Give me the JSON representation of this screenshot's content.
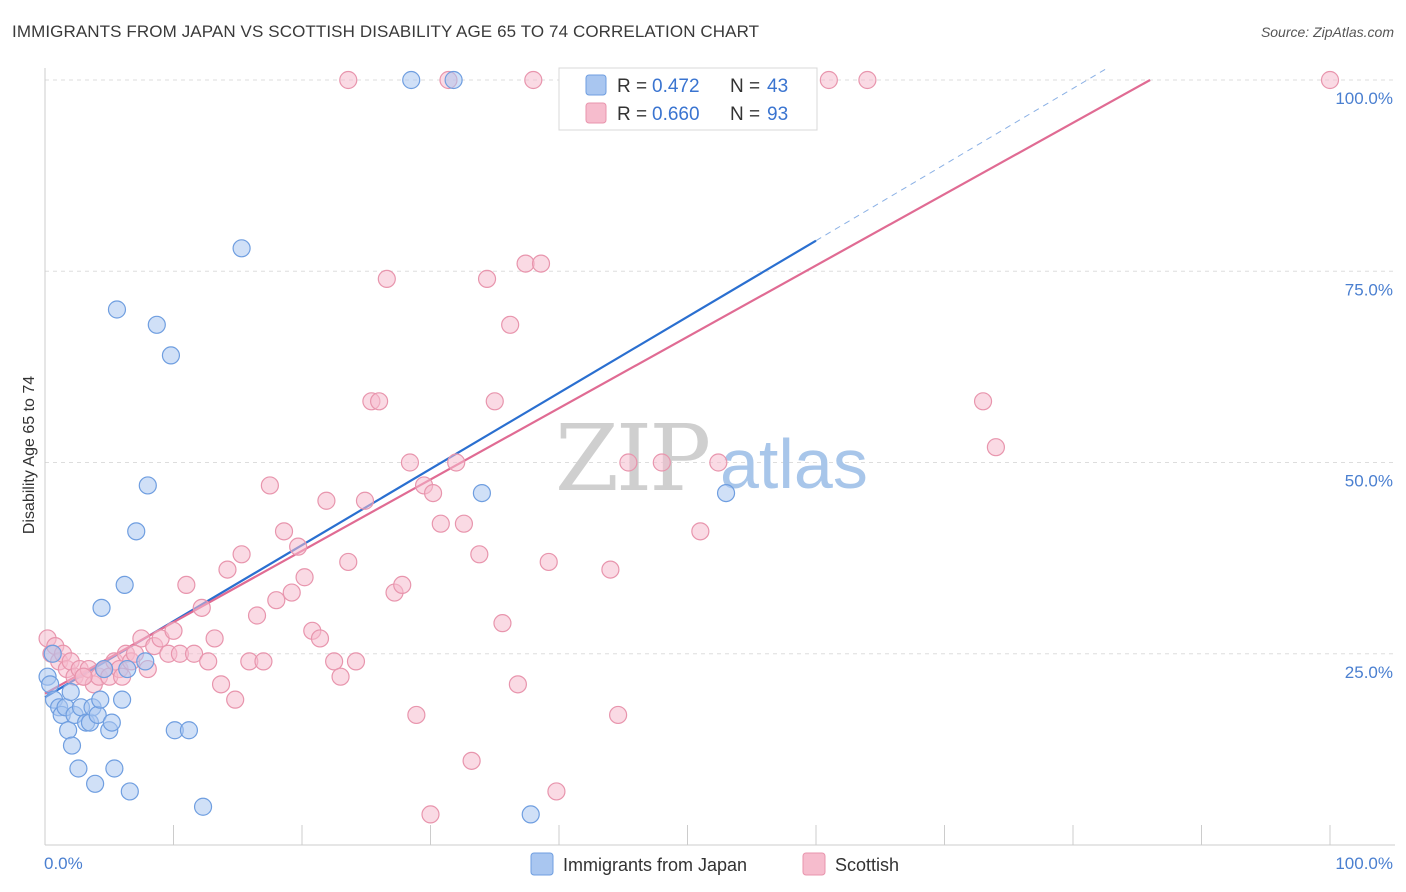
{
  "title": "IMMIGRANTS FROM JAPAN VS SCOTTISH DISABILITY AGE 65 TO 74 CORRELATION CHART",
  "source": "Source: ZipAtlas.com",
  "watermark": {
    "zip": "ZIP",
    "atlas": "atlas"
  },
  "colors": {
    "blue_fill": "#a9c6f0",
    "blue_stroke": "#6f9ee0",
    "blue_line": "#2a6fd0",
    "pink_fill": "#f6bccd",
    "pink_stroke": "#e895ad",
    "pink_line": "#e06b93",
    "grid": "#dddddd",
    "axis_text": "#4a7fd0"
  },
  "legend": {
    "rows": [
      {
        "r_label": "R = ",
        "r_value": "0.472",
        "n_label": "N = ",
        "n_value": "43"
      },
      {
        "r_label": "R = ",
        "r_value": "0.660",
        "n_label": "N = ",
        "n_value": "93"
      }
    ]
  },
  "bottom_legend": [
    "Immigrants from Japan",
    "Scottish"
  ],
  "chart_data": {
    "type": "scatter",
    "title": "IMMIGRANTS FROM JAPAN VS SCOTTISH DISABILITY AGE 65 TO 74 CORRELATION CHART",
    "xlabel": "",
    "ylabel": "Disability Age 65 to 74",
    "xlim": [
      0,
      100
    ],
    "ylim": [
      0,
      100
    ],
    "x_tick_labels": [
      "0.0%",
      "100.0%"
    ],
    "y_ticks": [
      25,
      50,
      75,
      100
    ],
    "y_tick_labels": [
      "25.0%",
      "50.0%",
      "75.0%",
      "100.0%"
    ],
    "grid": true,
    "series": [
      {
        "name": "Immigrants from Japan",
        "r": 0.472,
        "n": 43,
        "trend": {
          "x0": 0,
          "y0": 19.3,
          "x1": 60,
          "y1": 79,
          "dashed_to_x": 82.5
        },
        "points": [
          [
            0.2,
            22
          ],
          [
            0.4,
            21
          ],
          [
            0.6,
            25
          ],
          [
            0.7,
            19
          ],
          [
            1.1,
            18
          ],
          [
            1.3,
            17
          ],
          [
            1.6,
            18
          ],
          [
            1.8,
            15
          ],
          [
            2.1,
            13
          ],
          [
            2.3,
            17
          ],
          [
            2.6,
            10
          ],
          [
            2.8,
            18
          ],
          [
            3.2,
            16
          ],
          [
            3.5,
            16
          ],
          [
            3.7,
            18
          ],
          [
            3.9,
            8
          ],
          [
            4.1,
            17
          ],
          [
            4.3,
            19
          ],
          [
            4.4,
            31
          ],
          [
            4.6,
            23
          ],
          [
            5.0,
            15
          ],
          [
            5.2,
            16
          ],
          [
            5.4,
            10
          ],
          [
            6.0,
            19
          ],
          [
            6.2,
            34
          ],
          [
            6.4,
            23
          ],
          [
            6.6,
            7
          ],
          [
            7.1,
            41
          ],
          [
            7.8,
            24
          ],
          [
            5.6,
            70
          ],
          [
            8.7,
            68
          ],
          [
            9.8,
            64
          ],
          [
            10.1,
            15
          ],
          [
            11.2,
            15
          ],
          [
            12.3,
            5
          ],
          [
            15.3,
            78
          ],
          [
            28.5,
            100
          ],
          [
            31.8,
            100
          ],
          [
            34.0,
            46
          ],
          [
            53.0,
            46
          ],
          [
            37.8,
            4
          ],
          [
            8.0,
            47
          ],
          [
            2.0,
            20
          ]
        ]
      },
      {
        "name": "Scottish",
        "r": 0.66,
        "n": 93,
        "trend": {
          "x0": 0,
          "y0": 19.8,
          "x1": 86,
          "y1": 100
        },
        "points": [
          [
            0.2,
            27
          ],
          [
            0.5,
            25
          ],
          [
            0.8,
            26
          ],
          [
            1.1,
            24
          ],
          [
            1.4,
            25
          ],
          [
            1.7,
            23
          ],
          [
            2.0,
            24
          ],
          [
            2.3,
            22
          ],
          [
            2.7,
            23
          ],
          [
            3.0,
            22
          ],
          [
            3.4,
            23
          ],
          [
            3.8,
            21
          ],
          [
            4.2,
            22
          ],
          [
            4.6,
            23
          ],
          [
            5.0,
            22
          ],
          [
            5.4,
            24
          ],
          [
            5.8,
            23
          ],
          [
            6.3,
            25
          ],
          [
            6.7,
            24
          ],
          [
            7.0,
            25
          ],
          [
            7.5,
            27
          ],
          [
            8.0,
            23
          ],
          [
            8.5,
            26
          ],
          [
            9.0,
            27
          ],
          [
            9.6,
            25
          ],
          [
            10.0,
            28
          ],
          [
            10.5,
            25
          ],
          [
            11.0,
            34
          ],
          [
            11.6,
            25
          ],
          [
            12.2,
            31
          ],
          [
            12.7,
            24
          ],
          [
            13.2,
            27
          ],
          [
            13.7,
            21
          ],
          [
            14.2,
            36
          ],
          [
            14.8,
            19
          ],
          [
            15.3,
            38
          ],
          [
            15.9,
            24
          ],
          [
            16.5,
            30
          ],
          [
            17.0,
            24
          ],
          [
            17.5,
            47
          ],
          [
            18.0,
            32
          ],
          [
            18.6,
            41
          ],
          [
            19.2,
            33
          ],
          [
            19.7,
            39
          ],
          [
            20.2,
            35
          ],
          [
            20.8,
            28
          ],
          [
            21.4,
            27
          ],
          [
            21.9,
            45
          ],
          [
            22.5,
            24
          ],
          [
            23.0,
            22
          ],
          [
            23.6,
            37
          ],
          [
            24.2,
            24
          ],
          [
            24.9,
            45
          ],
          [
            25.4,
            58
          ],
          [
            26.0,
            58
          ],
          [
            26.6,
            74
          ],
          [
            27.2,
            33
          ],
          [
            27.8,
            34
          ],
          [
            28.4,
            50
          ],
          [
            28.9,
            17
          ],
          [
            29.5,
            47
          ],
          [
            30.2,
            46
          ],
          [
            30.8,
            42
          ],
          [
            31.4,
            100
          ],
          [
            32.0,
            50
          ],
          [
            32.6,
            42
          ],
          [
            33.2,
            11
          ],
          [
            33.8,
            38
          ],
          [
            34.4,
            74
          ],
          [
            35.0,
            58
          ],
          [
            35.6,
            29
          ],
          [
            36.2,
            68
          ],
          [
            36.8,
            21
          ],
          [
            37.4,
            76
          ],
          [
            38.0,
            100
          ],
          [
            38.6,
            76
          ],
          [
            39.2,
            37
          ],
          [
            39.8,
            7
          ],
          [
            44.0,
            36
          ],
          [
            44.6,
            17
          ],
          [
            45.4,
            50
          ],
          [
            48.0,
            50
          ],
          [
            51.0,
            41
          ],
          [
            52.4,
            50
          ],
          [
            61.0,
            100
          ],
          [
            64.0,
            100
          ],
          [
            73.0,
            58
          ],
          [
            74.0,
            52
          ],
          [
            100.0,
            100
          ],
          [
            23.6,
            100
          ],
          [
            30.0,
            4
          ],
          [
            6.0,
            22
          ],
          [
            3.0,
            22
          ]
        ]
      }
    ]
  }
}
